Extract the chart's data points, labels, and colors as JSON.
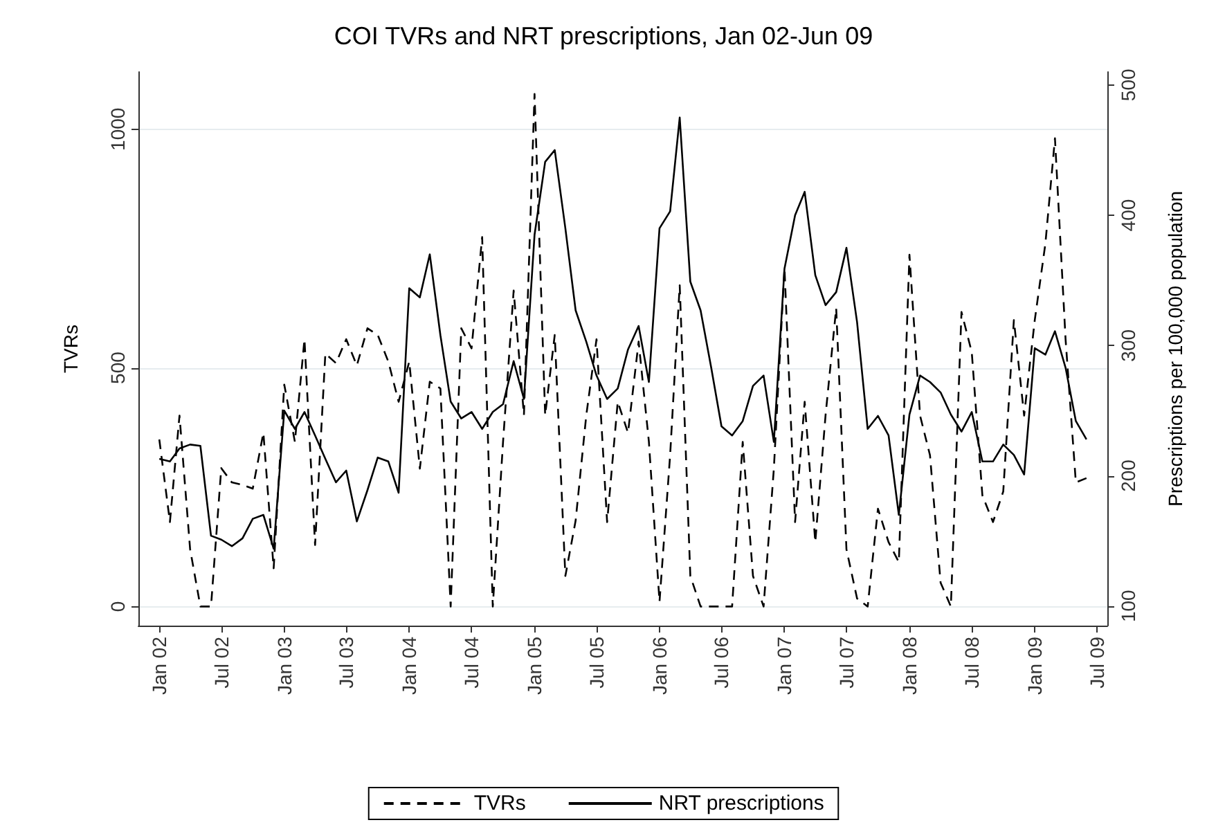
{
  "chart_data": {
    "type": "line",
    "title": "COI TVRs and NRT prescriptions, Jan 02-Jun 09",
    "ylabel": "TVRs",
    "y2label": "Prescriptions per 100,000 population",
    "x": [
      "2002-01",
      "2002-02",
      "2002-03",
      "2002-04",
      "2002-05",
      "2002-06",
      "2002-07",
      "2002-08",
      "2002-09",
      "2002-10",
      "2002-11",
      "2002-12",
      "2003-01",
      "2003-02",
      "2003-03",
      "2003-04",
      "2003-05",
      "2003-06",
      "2003-07",
      "2003-08",
      "2003-09",
      "2003-10",
      "2003-11",
      "2003-12",
      "2004-01",
      "2004-02",
      "2004-03",
      "2004-04",
      "2004-05",
      "2004-06",
      "2004-07",
      "2004-08",
      "2004-09",
      "2004-10",
      "2004-11",
      "2004-12",
      "2005-01",
      "2005-02",
      "2005-03",
      "2005-04",
      "2005-05",
      "2005-06",
      "2005-07",
      "2005-08",
      "2005-09",
      "2005-10",
      "2005-11",
      "2005-12",
      "2006-01",
      "2006-02",
      "2006-03",
      "2006-04",
      "2006-05",
      "2006-06",
      "2006-07",
      "2006-08",
      "2006-09",
      "2006-10",
      "2006-11",
      "2006-12",
      "2007-01",
      "2007-02",
      "2007-03",
      "2007-04",
      "2007-05",
      "2007-06",
      "2007-07",
      "2007-08",
      "2007-09",
      "2007-10",
      "2007-11",
      "2007-12",
      "2008-01",
      "2008-02",
      "2008-03",
      "2008-04",
      "2008-05",
      "2008-06",
      "2008-07",
      "2008-08",
      "2008-09",
      "2008-10",
      "2008-11",
      "2008-12",
      "2009-01",
      "2009-02",
      "2009-03",
      "2009-04",
      "2009-05",
      "2009-06"
    ],
    "series": [
      {
        "name": "TVRs",
        "color": "#000000",
        "line_style": "dashed",
        "values": [
          350,
          177,
          400,
          120,
          0,
          0,
          290,
          260,
          255,
          247,
          364,
          80,
          465,
          345,
          560,
          129,
          530,
          510,
          560,
          505,
          583,
          569,
          513,
          429,
          513,
          289,
          471,
          457,
          0,
          583,
          541,
          774,
          0,
          345,
          662,
          401,
          1074,
          401,
          569,
          64,
          180,
          400,
          560,
          177,
          429,
          364,
          555,
          345,
          10,
          317,
          673,
          64,
          0,
          0,
          0,
          0,
          345,
          64,
          0,
          289,
          709,
          177,
          429,
          135,
          401,
          625,
          120,
          17,
          0,
          205,
          135,
          93,
          737,
          400,
          317,
          50,
          0,
          617,
          533,
          233,
          177,
          241,
          600,
          400,
          600,
          760,
          981,
          560,
          260,
          269
        ]
      },
      {
        "name": "NRT prescriptions",
        "color": "#000000",
        "line_style": "solid",
        "axis": "y2",
        "values": [
          213,
          211,
          221,
          224,
          223,
          154,
          151,
          146,
          152,
          167,
          170,
          144,
          250,
          236,
          249,
          231,
          213,
          195,
          204,
          165,
          189,
          214,
          211,
          187,
          344,
          337,
          370,
          308,
          257,
          244,
          249,
          236,
          249,
          255,
          288,
          259,
          385,
          441,
          450,
          390,
          327,
          303,
          277,
          259,
          267,
          297,
          315,
          272,
          390,
          403,
          475,
          349,
          327,
          283,
          238,
          231,
          242,
          269,
          277,
          226,
          359,
          400,
          418,
          354,
          331,
          341,
          375,
          318,
          236,
          246,
          231,
          170,
          247,
          277,
          272,
          264,
          247,
          234,
          249,
          211,
          211,
          224,
          216,
          201,
          298,
          293,
          311,
          283,
          242,
          228
        ]
      }
    ],
    "xlim": [
      "2001-11",
      "2009-08"
    ],
    "xticks": [
      {
        "value": "2002-01",
        "label": "Jan 02"
      },
      {
        "value": "2002-07",
        "label": "Jul 02"
      },
      {
        "value": "2003-01",
        "label": "Jan 03"
      },
      {
        "value": "2003-07",
        "label": "Jul 03"
      },
      {
        "value": "2004-01",
        "label": "Jan 04"
      },
      {
        "value": "2004-07",
        "label": "Jul 04"
      },
      {
        "value": "2005-01",
        "label": "Jan 05"
      },
      {
        "value": "2005-07",
        "label": "Jul 05"
      },
      {
        "value": "2006-01",
        "label": "Jan 06"
      },
      {
        "value": "2006-07",
        "label": "Jul 06"
      },
      {
        "value": "2007-01",
        "label": "Jan 07"
      },
      {
        "value": "2007-07",
        "label": "Jul 07"
      },
      {
        "value": "2008-01",
        "label": "Jan 08"
      },
      {
        "value": "2008-07",
        "label": "Jul 08"
      },
      {
        "value": "2009-01",
        "label": "Jan 09"
      },
      {
        "value": "2009-07",
        "label": "Jul 09"
      }
    ],
    "ylim": [
      -40,
      1120
    ],
    "yticks": [
      0,
      500,
      1000
    ],
    "y2lim": [
      85,
      510
    ],
    "y2ticks": [
      100,
      200,
      300,
      400,
      500
    ],
    "grid": "y",
    "legend": "bottom"
  }
}
